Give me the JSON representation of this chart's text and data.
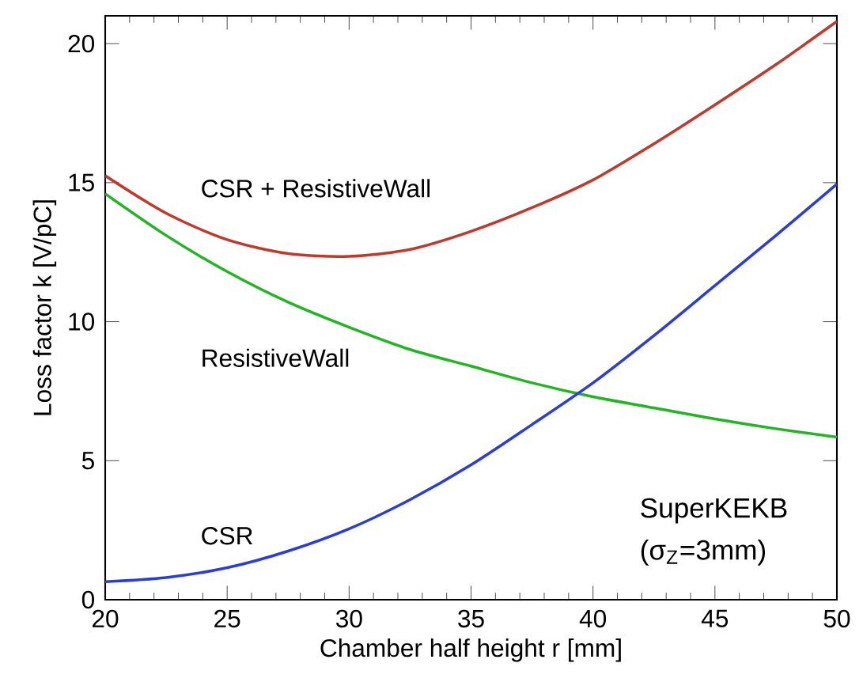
{
  "chart_data": {
    "type": "line",
    "xlabel": "Chamber half height  r [mm]",
    "ylabel": "Loss factor  k [V/pC]",
    "x": [
      20,
      22.5,
      25,
      27.5,
      30,
      32.5,
      35,
      37.5,
      40,
      42.5,
      45,
      47.5,
      50
    ],
    "series": [
      {
        "name": "CSR + ResistiveWall",
        "color": "#c0392b",
        "values": [
          15.25,
          13.9,
          12.95,
          12.45,
          12.35,
          12.6,
          13.25,
          14.1,
          15.1,
          16.4,
          17.8,
          19.25,
          20.8
        ]
      },
      {
        "name": "ResistiveWall",
        "color": "#22b522",
        "values": [
          14.6,
          13.1,
          11.8,
          10.7,
          9.8,
          9.0,
          8.4,
          7.8,
          7.3,
          6.9,
          6.5,
          6.15,
          5.85
        ]
      },
      {
        "name": "CSR",
        "color": "#2a3cdc",
        "values": [
          0.65,
          0.8,
          1.15,
          1.75,
          2.55,
          3.6,
          4.85,
          6.3,
          7.8,
          9.5,
          11.3,
          13.1,
          14.95
        ]
      }
    ],
    "annotations": [
      "SuperKEKB",
      "(σ$_{Z}$=3mm)"
    ],
    "xlim": [
      20,
      50
    ],
    "ylim": [
      0,
      21
    ],
    "xticks": [
      20,
      25,
      30,
      35,
      40,
      45,
      50
    ],
    "yticks": [
      0,
      5,
      10,
      15,
      20
    ],
    "grid": false,
    "legend": false,
    "marker": "none",
    "line_style": "solid"
  }
}
